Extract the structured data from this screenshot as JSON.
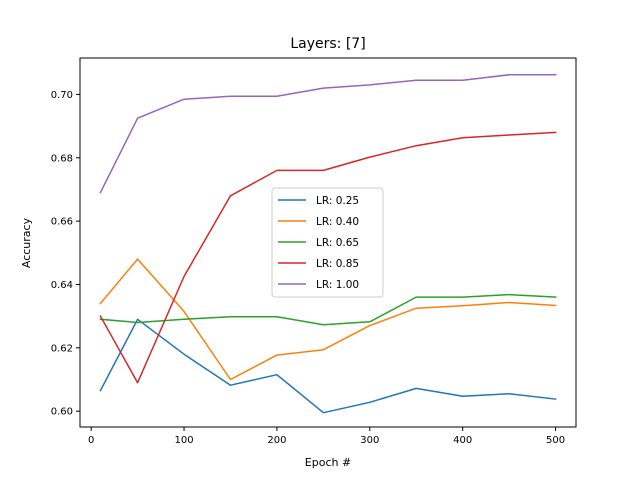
{
  "chart_data": {
    "type": "line",
    "title": "Layers: [7]",
    "xlabel": "Epoch #",
    "ylabel": "Accuracy",
    "xlim": [
      -12,
      522
    ],
    "ylim": [
      0.595,
      0.7115
    ],
    "xticks": [
      0,
      100,
      200,
      300,
      400,
      500
    ],
    "yticks": [
      0.6,
      0.62,
      0.64,
      0.66,
      0.68,
      0.7
    ],
    "x": [
      10,
      50,
      100,
      150,
      200,
      250,
      300,
      350,
      400,
      450,
      500
    ],
    "legend_position": "center",
    "grid": false,
    "series": [
      {
        "name": "LR:  0.25",
        "color": "#1f77b4",
        "values": [
          0.6065,
          0.629,
          0.618,
          0.6082,
          0.6115,
          0.5995,
          0.6028,
          0.6072,
          0.6047,
          0.6055,
          0.6038
        ]
      },
      {
        "name": "LR:  0.40",
        "color": "#ff7f0e",
        "values": [
          0.634,
          0.648,
          0.6315,
          0.61,
          0.6177,
          0.6194,
          0.627,
          0.6325,
          0.6333,
          0.6343,
          0.6334
        ]
      },
      {
        "name": "LR:  0.65",
        "color": "#2ca02c",
        "values": [
          0.629,
          0.628,
          0.629,
          0.6298,
          0.6298,
          0.6273,
          0.6282,
          0.636,
          0.636,
          0.6368,
          0.636
        ]
      },
      {
        "name": "LR:  0.85",
        "color": "#d62728",
        "values": [
          0.63,
          0.609,
          0.6425,
          0.668,
          0.676,
          0.676,
          0.6802,
          0.6838,
          0.6863,
          0.6872,
          0.688
        ]
      },
      {
        "name": "LR:  1.00",
        "color": "#9467bd",
        "values": [
          0.669,
          0.6925,
          0.6985,
          0.6994,
          0.6994,
          0.702,
          0.703,
          0.7045,
          0.7045,
          0.7062,
          0.7062
        ]
      }
    ]
  }
}
